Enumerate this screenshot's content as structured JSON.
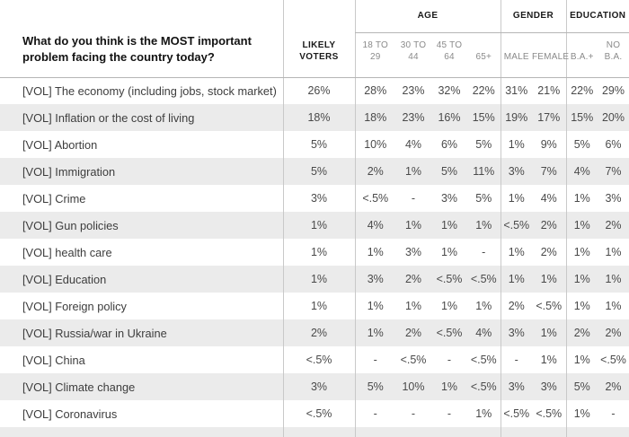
{
  "chart_data": {
    "type": "table",
    "title": "What do you think is the MOST important problem facing the country today?",
    "column_groups": [
      {
        "label": "AGE",
        "span": 4
      },
      {
        "label": "GENDER",
        "span": 2
      },
      {
        "label": "EDUCATION",
        "span": 2
      }
    ],
    "columns": [
      "LIKELY VOTERS",
      "18 TO 29",
      "30 TO 44",
      "45 TO 64",
      "65+",
      "MALE",
      "FEMALE",
      "B.A.+",
      "NO B.A."
    ],
    "rows": [
      {
        "label": "[VOL] The economy (including jobs, stock market)",
        "values": [
          "26%",
          "28%",
          "23%",
          "32%",
          "22%",
          "31%",
          "21%",
          "22%",
          "29%"
        ]
      },
      {
        "label": "[VOL] Inflation or the cost of living",
        "values": [
          "18%",
          "18%",
          "23%",
          "16%",
          "15%",
          "19%",
          "17%",
          "15%",
          "20%"
        ]
      },
      {
        "label": "[VOL] Abortion",
        "values": [
          "5%",
          "10%",
          "4%",
          "6%",
          "5%",
          "1%",
          "9%",
          "5%",
          "6%"
        ]
      },
      {
        "label": "[VOL] Immigration",
        "values": [
          "5%",
          "2%",
          "1%",
          "5%",
          "11%",
          "3%",
          "7%",
          "4%",
          "7%"
        ]
      },
      {
        "label": "[VOL] Crime",
        "values": [
          "3%",
          "<.5%",
          "-",
          "3%",
          "5%",
          "1%",
          "4%",
          "1%",
          "3%"
        ]
      },
      {
        "label": "[VOL] Gun policies",
        "values": [
          "1%",
          "4%",
          "1%",
          "1%",
          "1%",
          "<.5%",
          "2%",
          "1%",
          "2%"
        ]
      },
      {
        "label": "[VOL] health care",
        "values": [
          "1%",
          "1%",
          "3%",
          "1%",
          "-",
          "1%",
          "2%",
          "1%",
          "1%"
        ]
      },
      {
        "label": "[VOL] Education",
        "values": [
          "1%",
          "3%",
          "2%",
          "<.5%",
          "<.5%",
          "1%",
          "1%",
          "1%",
          "1%"
        ]
      },
      {
        "label": "[VOL] Foreign policy",
        "values": [
          "1%",
          "1%",
          "1%",
          "1%",
          "1%",
          "2%",
          "<.5%",
          "1%",
          "1%"
        ]
      },
      {
        "label": "[VOL] Russia/war in Ukraine",
        "values": [
          "2%",
          "1%",
          "2%",
          "<.5%",
          "4%",
          "3%",
          "1%",
          "2%",
          "2%"
        ]
      },
      {
        "label": "[VOL] China",
        "values": [
          "<.5%",
          "-",
          "<.5%",
          "-",
          "<.5%",
          "-",
          "1%",
          "1%",
          "<.5%"
        ]
      },
      {
        "label": "[VOL] Climate change",
        "values": [
          "3%",
          "5%",
          "10%",
          "1%",
          "<.5%",
          "3%",
          "3%",
          "5%",
          "2%"
        ]
      },
      {
        "label": "[VOL] Coronavirus",
        "values": [
          "<.5%",
          "-",
          "-",
          "-",
          "1%",
          "<.5%",
          "<.5%",
          "1%",
          "-"
        ]
      }
    ],
    "layout_hints": {
      "striped_rows": "even",
      "group_dividers": true
    }
  },
  "header": {
    "question": "What do you think is the MOST important problem facing the country today?",
    "likely_voters_label": "LIKELY\nVOTERS",
    "sub_labels": [
      "18 TO\n29",
      "30 TO\n44",
      "45 TO\n64",
      "65+",
      "MALE",
      "FEMALE",
      "B.A.+",
      "NO\nB.A."
    ]
  },
  "colors": {
    "row_stripe": "#ebebeb",
    "grid_line": "#c9c9c9",
    "header_rule": "#b5b5b5",
    "text_header": "#1a1a1a",
    "text_subheader": "#8a8a8a",
    "text_value": "#4a4a4a",
    "text_row_label": "#3d3d3d"
  }
}
